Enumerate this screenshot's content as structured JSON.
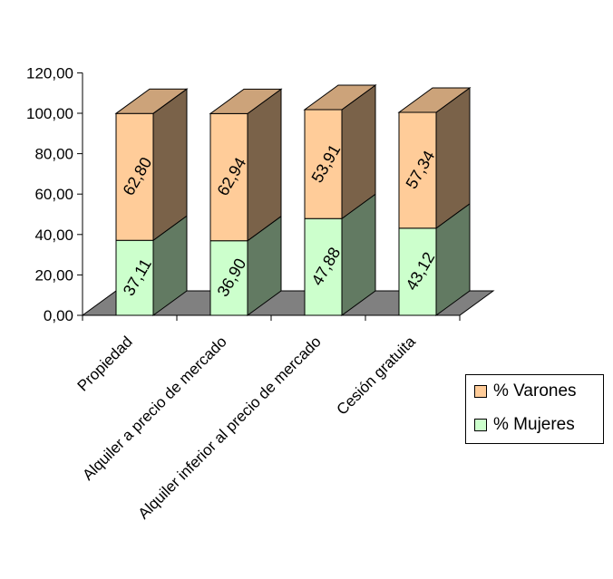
{
  "chart_data": {
    "type": "bar",
    "stacked": true,
    "three_d": true,
    "categories": [
      "Propiedad",
      "Alquiler a precio de mercado",
      "Alquiler inferior al precio de mercado",
      "Cesión gratuita"
    ],
    "series": [
      {
        "name": "% Mujeres",
        "values": [
          37.11,
          36.9,
          47.88,
          43.12
        ],
        "labels": [
          "37,11",
          "36,90",
          "47,88",
          "43,12"
        ],
        "color": "#ccffcc"
      },
      {
        "name": "% Varones",
        "values": [
          62.8,
          62.94,
          53.91,
          57.34
        ],
        "labels": [
          "62,80",
          "62,94",
          "53,91",
          "57,34"
        ],
        "color": "#ffcc99"
      }
    ],
    "ylim": [
      0,
      120
    ],
    "yticks": [
      "0,00",
      "20,00",
      "40,00",
      "60,00",
      "80,00",
      "100,00",
      "120,00"
    ],
    "grid": false,
    "floor_color": "#808080",
    "legend_position": "right",
    "title": "",
    "xlabel": "",
    "ylabel": ""
  }
}
